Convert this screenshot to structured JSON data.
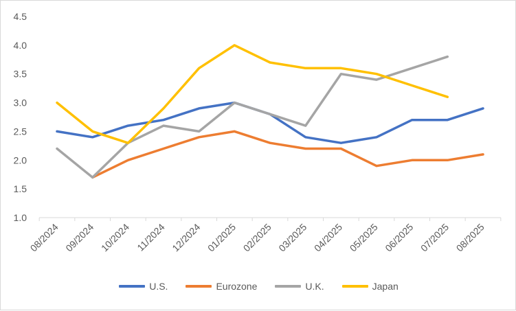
{
  "chart_data": {
    "type": "line",
    "title": "",
    "xlabel": "",
    "ylabel": "",
    "categories": [
      "08/2024",
      "09/2024",
      "10/2024",
      "11/2024",
      "12/2024",
      "01/2025",
      "02/2025",
      "03/2025",
      "04/2025",
      "05/2025",
      "06/2025",
      "07/2025",
      "08/2025"
    ],
    "ylim": [
      1.0,
      4.5
    ],
    "yticks": [
      "1.0",
      "1.5",
      "2.0",
      "2.5",
      "3.0",
      "3.5",
      "4.0",
      "4.5"
    ],
    "grid": "none",
    "legend_position": "bottom",
    "series": [
      {
        "name": "U.S.",
        "color": "#4472C4",
        "values": [
          2.5,
          2.4,
          2.6,
          2.7,
          2.9,
          3.0,
          2.8,
          2.4,
          2.3,
          2.4,
          2.7,
          2.7,
          2.9
        ]
      },
      {
        "name": "Eurozone",
        "color": "#ED7D31",
        "values": [
          null,
          1.7,
          2.0,
          2.2,
          2.4,
          2.5,
          2.3,
          2.2,
          2.2,
          1.9,
          2.0,
          2.0,
          2.1
        ]
      },
      {
        "name": "U.K.",
        "color": "#A5A5A5",
        "values": [
          2.2,
          1.7,
          2.3,
          2.6,
          2.5,
          3.0,
          2.8,
          2.6,
          3.5,
          3.4,
          3.6,
          3.8,
          null
        ]
      },
      {
        "name": "Japan",
        "color": "#FFC000",
        "values": [
          3.0,
          2.5,
          2.3,
          2.9,
          3.6,
          4.0,
          3.7,
          3.6,
          3.6,
          3.5,
          3.3,
          3.1,
          null
        ]
      }
    ]
  }
}
